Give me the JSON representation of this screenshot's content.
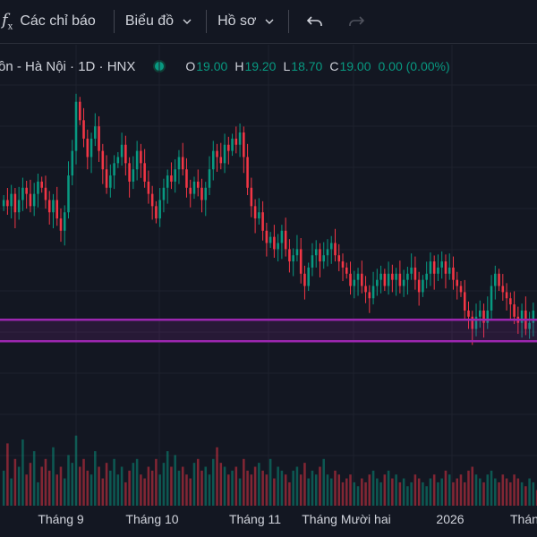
{
  "toolbar": {
    "indicators_label": "Các chỉ báo",
    "chart_type_label": "Biểu đồ",
    "profile_label": "Hồ sơ"
  },
  "legend": {
    "symbol": "ồn - Hà Nội · 1D · HNX",
    "open_label": "O",
    "open": "19.00",
    "high_label": "H",
    "high": "19.20",
    "low_label": "L",
    "low": "18.70",
    "close_label": "C",
    "close": "19.00",
    "change": "0.00 (0.00%)"
  },
  "colors": {
    "up": "#089981",
    "down": "#f23645",
    "background": "#131722",
    "line": "#9c27b0"
  },
  "chart_data": {
    "type": "candlestick",
    "interval": "1D",
    "x_tick_labels": [
      "Tháng 9",
      "Tháng 10",
      "Tháng 11",
      "Tháng Mười hai",
      "2026",
      "Thán"
    ],
    "horizontal_lines": [
      18.85,
      18.5
    ],
    "close_series": [
      20.8,
      20.7,
      20.9,
      20.6,
      20.8,
      21.0,
      20.9,
      20.7,
      20.9,
      21.1,
      21.0,
      20.8,
      20.6,
      20.8,
      20.5,
      20.3,
      20.6,
      21.2,
      21.6,
      22.4,
      22.1,
      21.8,
      21.5,
      21.8,
      22.0,
      21.6,
      21.3,
      21.0,
      21.2,
      21.4,
      21.5,
      21.7,
      21.4,
      21.1,
      21.3,
      21.6,
      21.4,
      21.1,
      20.9,
      20.7,
      20.5,
      20.8,
      21.0,
      21.2,
      21.1,
      21.3,
      21.5,
      21.3,
      21.0,
      20.9,
      21.1,
      21.0,
      20.8,
      21.0,
      21.3,
      21.6,
      21.5,
      21.4,
      21.7,
      21.6,
      21.8,
      21.7,
      21.9,
      21.5,
      21.0,
      20.7,
      20.5,
      20.6,
      20.3,
      20.1,
      20.2,
      20.0,
      20.1,
      20.3,
      20.0,
      19.8,
      19.9,
      20.0,
      19.6,
      19.4,
      19.7,
      19.9,
      20.0,
      19.8,
      19.9,
      20.0,
      20.1,
      19.9,
      19.8,
      19.7,
      19.6,
      19.4,
      19.5,
      19.6,
      19.4,
      19.3,
      19.2,
      19.4,
      19.5,
      19.6,
      19.4,
      19.6,
      19.5,
      19.6,
      19.4,
      19.5,
      19.6,
      19.7,
      19.5,
      19.3,
      19.5,
      19.6,
      19.8,
      19.6,
      19.7,
      19.8,
      19.6,
      19.7,
      19.5,
      19.4,
      19.3,
      19.0,
      18.9,
      18.7,
      18.9,
      19.0,
      18.8,
      19.0,
      19.4,
      19.6,
      19.4,
      19.3,
      19.2,
      19.1,
      18.9,
      18.8,
      19.0,
      18.7,
      18.8,
      19.0
    ],
    "volume_series": [
      0.45,
      0.8,
      0.35,
      0.6,
      0.5,
      0.85,
      0.4,
      0.55,
      0.7,
      0.3,
      0.5,
      0.6,
      0.45,
      0.75,
      0.4,
      0.5,
      0.35,
      0.65,
      0.55,
      0.9,
      0.5,
      0.6,
      0.45,
      0.4,
      0.7,
      0.5,
      0.35,
      0.55,
      0.45,
      0.6,
      0.4,
      0.5,
      0.3,
      0.45,
      0.55,
      0.6,
      0.4,
      0.35,
      0.5,
      0.45,
      0.6,
      0.4,
      0.55,
      0.7,
      0.5,
      0.65,
      0.45,
      0.5,
      0.4,
      0.35,
      0.55,
      0.6,
      0.45,
      0.5,
      0.4,
      0.6,
      0.75,
      0.55,
      0.5,
      0.4,
      0.45,
      0.5,
      0.35,
      0.6,
      0.45,
      0.4,
      0.5,
      0.55,
      0.45,
      0.4,
      0.6,
      0.35,
      0.5,
      0.45,
      0.4,
      0.3,
      0.45,
      0.5,
      0.4,
      0.55,
      0.35,
      0.45,
      0.4,
      0.5,
      0.6,
      0.4,
      0.35,
      0.45,
      0.4,
      0.3,
      0.35,
      0.4,
      0.3,
      0.25,
      0.35,
      0.3,
      0.4,
      0.45,
      0.35,
      0.3,
      0.4,
      0.45,
      0.35,
      0.4,
      0.3,
      0.35,
      0.25,
      0.3,
      0.4,
      0.35,
      0.3,
      0.25,
      0.35,
      0.4,
      0.3,
      0.35,
      0.45,
      0.4,
      0.3,
      0.35,
      0.4,
      0.3,
      0.45,
      0.5,
      0.4,
      0.35,
      0.3,
      0.4,
      0.45,
      0.35,
      0.3,
      0.4,
      0.35,
      0.3,
      0.4,
      0.35,
      0.3,
      0.25,
      0.35,
      0.3,
      0.2
    ]
  }
}
